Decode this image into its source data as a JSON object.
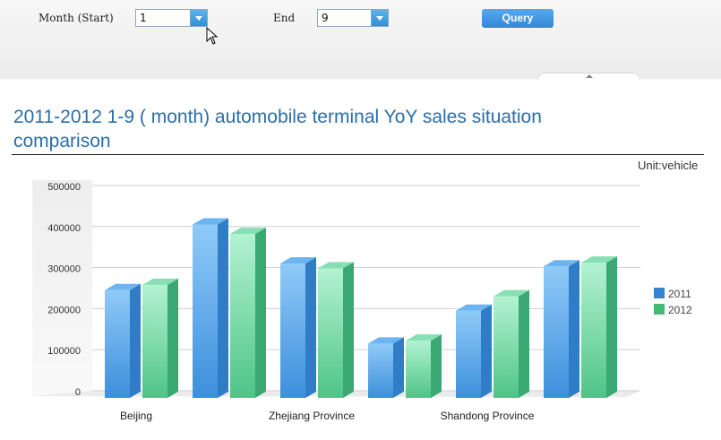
{
  "filters": {
    "month_start_label": "Month (Start)",
    "month_start_value": "1",
    "end_label": "End",
    "end_value": "9",
    "query_label": "Query"
  },
  "title": "2011-2012 1-9 ( month) automobile terminal YoY sales situation comparison",
  "unit": "Unit:vehicle",
  "colors": {
    "s2011": "#4f9fe6",
    "s2012": "#62d49b",
    "title": "#2a6ea8"
  },
  "chart_data": {
    "type": "bar",
    "title": "2011-2012 1-9 ( month) automobile terminal YoY sales situation comparison",
    "ylim": [
      0,
      500000
    ],
    "yticks": [
      "500000",
      "400000",
      "300000",
      "200000",
      "100000",
      "0"
    ],
    "categories": [
      "Beijing",
      "",
      "Zhejiang Province",
      "",
      "Shandong Province",
      ""
    ],
    "series": [
      {
        "name": "2011",
        "values": [
          245000,
          405000,
          310000,
          115000,
          195000,
          303000
        ]
      },
      {
        "name": "2012",
        "values": [
          258000,
          382000,
          298000,
          122000,
          230000,
          312000
        ]
      }
    ],
    "grid": true,
    "legend": "right"
  }
}
